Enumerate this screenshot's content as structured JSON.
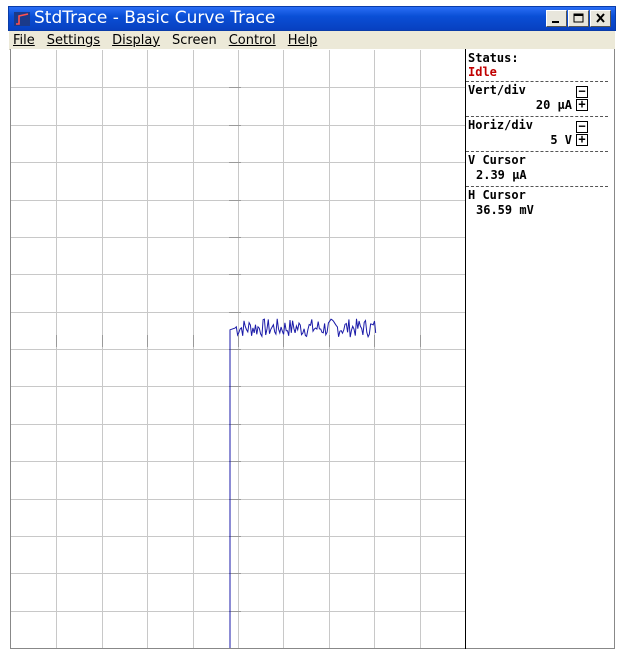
{
  "window": {
    "title": "StdTrace - Basic Curve Trace",
    "buttons": [
      "minimize-button",
      "maximize-button",
      "close-button"
    ]
  },
  "menu": {
    "items": [
      {
        "label": "File",
        "underline": "F"
      },
      {
        "label": "Settings",
        "underline": "S"
      },
      {
        "label": "Display",
        "underline": "D"
      },
      {
        "label": "Screen",
        "underline": "n"
      },
      {
        "label": "Control",
        "underline": "C"
      },
      {
        "label": "Help",
        "underline": "H"
      }
    ]
  },
  "panel": {
    "status_label": "Status:",
    "status_value": "Idle",
    "vert_label": "Vert/div",
    "vert_value": "20 µA",
    "horiz_label": "Horiz/div",
    "horiz_value": "5  V",
    "vcursor_label": "V Cursor",
    "vcursor_value": "2.39 µA",
    "hcursor_label": "H Cursor",
    "hcursor_value": "36.59 mV",
    "minus_symbol": "−",
    "plus_symbol": "+"
  },
  "colors": {
    "trace": "#1a1aa8",
    "status_idle": "#c00000",
    "grid": "#c8c8c8",
    "title_bar": "#0a4fd6"
  },
  "chart_data": {
    "type": "line",
    "grid": true,
    "divisions": {
      "horizontal": 10,
      "vertical": 16
    },
    "xunit_per_div": "5 V",
    "yunit_per_div": "20 µA",
    "trace": {
      "start_step": {
        "x": 0,
        "y_from": -8.4,
        "y_to": 0.3
      },
      "noise_x_range": [
        0,
        3.1
      ],
      "noise_y_range": [
        0.1,
        0.6
      ]
    }
  }
}
